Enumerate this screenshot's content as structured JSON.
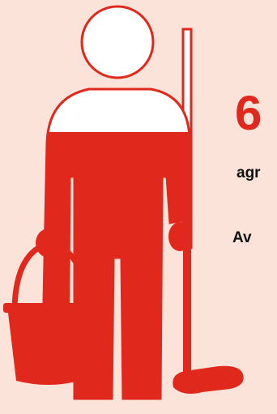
{
  "figure": {
    "icon": "janitor-with-mop-and-bucket-icon",
    "fill_fraction": 0.77,
    "colors": {
      "background": "#fce3da",
      "fill": "#e0281c",
      "outline": "#e0281c",
      "empty": "#ffffff"
    }
  },
  "stats": {
    "big_number": "6",
    "fragment_1": "agr",
    "fragment_2": "Av"
  }
}
